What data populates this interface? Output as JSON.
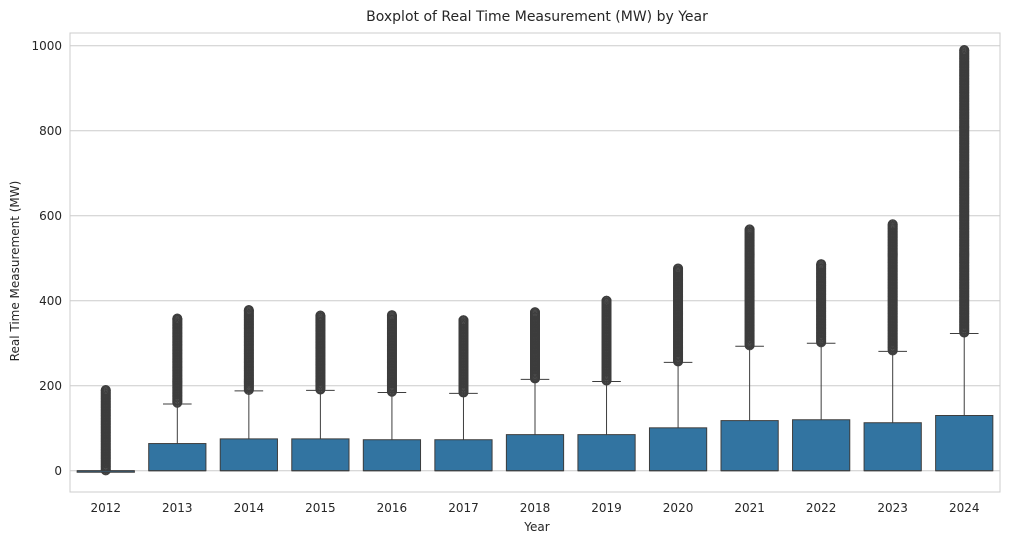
{
  "chart_data": {
    "type": "boxplot",
    "title": "Boxplot of Real Time Measurement (MW) by Year",
    "xlabel": "Year",
    "ylabel": "Real Time Measurement (MW)",
    "ylim": [
      -50,
      1030
    ],
    "yticks": [
      0,
      200,
      400,
      600,
      800,
      1000
    ],
    "grid": "horizontal",
    "colors": {
      "box": "#3274a1",
      "line": "#3d3d3d",
      "grid": "#cccccc",
      "spine": "#cccccc"
    },
    "categories": [
      "2012",
      "2013",
      "2014",
      "2015",
      "2016",
      "2017",
      "2018",
      "2019",
      "2020",
      "2021",
      "2022",
      "2023",
      "2024"
    ],
    "boxes": [
      {
        "year": "2012",
        "q1": 0,
        "median": 0,
        "q3": 0,
        "whisker_low": 0,
        "whisker_high": 0,
        "outlier_min": 1,
        "outlier_max": 190
      },
      {
        "year": "2013",
        "q1": 0,
        "median": 0,
        "q3": 64,
        "whisker_low": 0,
        "whisker_high": 157,
        "outlier_min": 160,
        "outlier_max": 358
      },
      {
        "year": "2014",
        "q1": 0,
        "median": 0,
        "q3": 75,
        "whisker_low": 0,
        "whisker_high": 188,
        "outlier_min": 190,
        "outlier_max": 378
      },
      {
        "year": "2015",
        "q1": 0,
        "median": 0,
        "q3": 75,
        "whisker_low": 0,
        "whisker_high": 189,
        "outlier_min": 191,
        "outlier_max": 365
      },
      {
        "year": "2016",
        "q1": 0,
        "median": 0,
        "q3": 73,
        "whisker_low": 0,
        "whisker_high": 184,
        "outlier_min": 186,
        "outlier_max": 366
      },
      {
        "year": "2017",
        "q1": 0,
        "median": 0,
        "q3": 73,
        "whisker_low": 0,
        "whisker_high": 182,
        "outlier_min": 184,
        "outlier_max": 354
      },
      {
        "year": "2018",
        "q1": 0,
        "median": 0,
        "q3": 85,
        "whisker_low": 0,
        "whisker_high": 215,
        "outlier_min": 217,
        "outlier_max": 373
      },
      {
        "year": "2019",
        "q1": 0,
        "median": 0,
        "q3": 85,
        "whisker_low": 0,
        "whisker_high": 210,
        "outlier_min": 212,
        "outlier_max": 400
      },
      {
        "year": "2020",
        "q1": 0,
        "median": 0,
        "q3": 101,
        "whisker_low": 0,
        "whisker_high": 255,
        "outlier_min": 257,
        "outlier_max": 476
      },
      {
        "year": "2021",
        "q1": 0,
        "median": 0,
        "q3": 118,
        "whisker_low": 0,
        "whisker_high": 293,
        "outlier_min": 295,
        "outlier_max": 568
      },
      {
        "year": "2022",
        "q1": 0,
        "median": 0,
        "q3": 120,
        "whisker_low": 0,
        "whisker_high": 300,
        "outlier_min": 302,
        "outlier_max": 486
      },
      {
        "year": "2023",
        "q1": 0,
        "median": 0,
        "q3": 113,
        "whisker_low": 0,
        "whisker_high": 281,
        "outlier_min": 283,
        "outlier_max": 580
      },
      {
        "year": "2024",
        "q1": 0,
        "median": 0,
        "q3": 130,
        "whisker_low": 0,
        "whisker_high": 323,
        "outlier_min": 325,
        "outlier_max": 990
      }
    ]
  }
}
